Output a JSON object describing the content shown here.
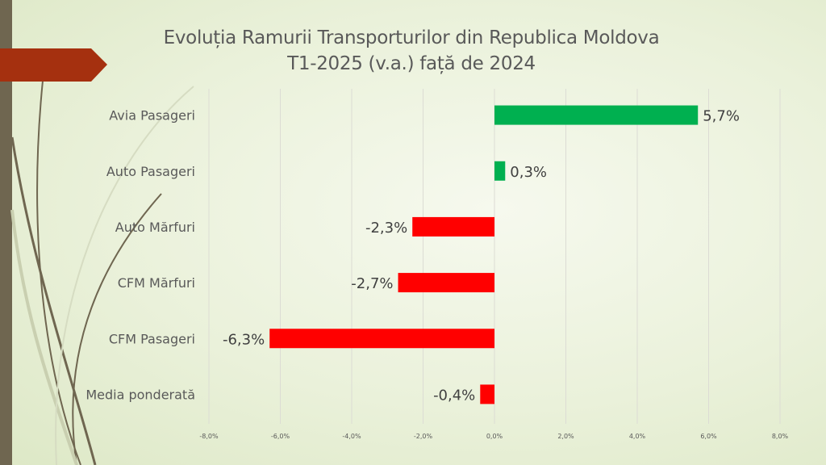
{
  "title_line1": "Evoluția Ramurii Transporturilor din Republica Moldova",
  "title_line2": "T1-2025 (v.a.) față de 2024",
  "colors": {
    "positive": "#00b050",
    "negative": "#ff0000",
    "accent": "#a5300f",
    "strip": "#6f6650"
  },
  "chart_data": {
    "type": "bar",
    "orientation": "horizontal",
    "title": "Evoluția Ramurii Transporturilor din Republica Moldova T1-2025 (v.a.) față de 2024",
    "categories": [
      "Avia Pasageri",
      "Auto Pasageri",
      "Auto Mărfuri",
      "CFM Mărfuri",
      "CFM Pasageri",
      "Media ponderată"
    ],
    "values": [
      5.7,
      0.3,
      -2.3,
      -2.7,
      -6.3,
      -0.4
    ],
    "data_labels": [
      "5,7%",
      "0,3%",
      "-2,3%",
      "-2,7%",
      "-6,3%",
      "-0,4%"
    ],
    "xlim": [
      -8,
      8
    ],
    "xticks": [
      -8,
      -6,
      -4,
      -2,
      0,
      2,
      4,
      6,
      8
    ],
    "xtick_labels": [
      "-8,0%",
      "-6,0%",
      "-4,0%",
      "-2,0%",
      "0,0%",
      "2,0%",
      "4,0%",
      "6,0%",
      "8,0%"
    ],
    "grid": true,
    "xlabel": "",
    "ylabel": ""
  }
}
